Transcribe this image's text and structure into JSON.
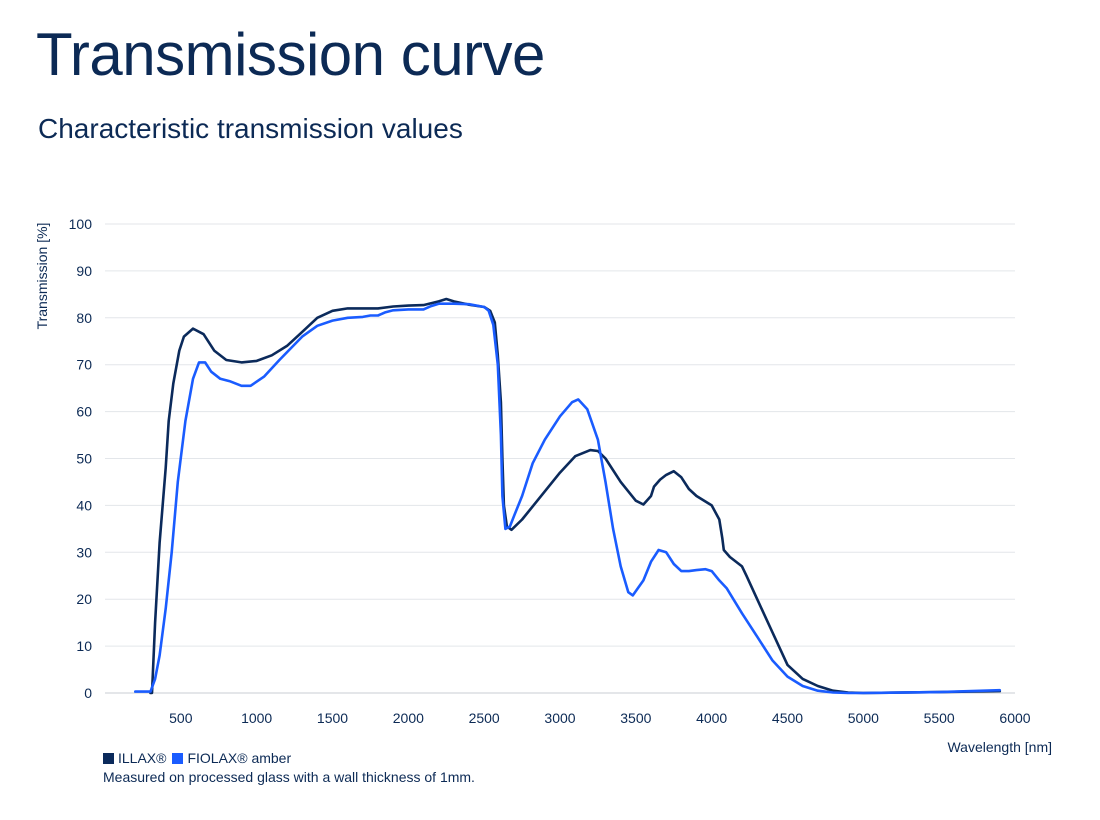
{
  "page": {
    "title": "Transmission curve",
    "subtitle": "Characteristic transmission values",
    "note": "Measured on processed glass with a wall thickness of 1mm."
  },
  "colors": {
    "text": "#0c2a55",
    "grid": "#e3e6ea",
    "axis": "#c9cdd3"
  },
  "chart_data": {
    "type": "line",
    "xlabel": "Wavelength [nm]",
    "ylabel": "Transmission [%]",
    "xlim": [
      0,
      6000
    ],
    "ylim": [
      0,
      100
    ],
    "x_ticks": [
      500,
      1000,
      1500,
      2000,
      2500,
      3000,
      3500,
      4000,
      4500,
      5000,
      5500,
      6000
    ],
    "y_ticks": [
      0,
      10,
      20,
      30,
      40,
      50,
      60,
      70,
      80,
      90,
      100
    ],
    "grid": true,
    "legend_position": "bottom-left",
    "series": [
      {
        "name": "ILLAX®",
        "color": "#0b2a5b",
        "points": [
          [
            300,
            0
          ],
          [
            310,
            0
          ],
          [
            330,
            15
          ],
          [
            360,
            32
          ],
          [
            400,
            48
          ],
          [
            420,
            58
          ],
          [
            450,
            66
          ],
          [
            490,
            73
          ],
          [
            520,
            76
          ],
          [
            580,
            77.7
          ],
          [
            650,
            76.5
          ],
          [
            720,
            73
          ],
          [
            800,
            71
          ],
          [
            900,
            70.5
          ],
          [
            1000,
            70.8
          ],
          [
            1100,
            72
          ],
          [
            1200,
            74
          ],
          [
            1300,
            77
          ],
          [
            1400,
            80
          ],
          [
            1500,
            81.5
          ],
          [
            1600,
            82
          ],
          [
            1800,
            82
          ],
          [
            1900,
            82.4
          ],
          [
            2000,
            82.6
          ],
          [
            2100,
            82.7
          ],
          [
            2200,
            83.5
          ],
          [
            2250,
            84
          ],
          [
            2300,
            83.5
          ],
          [
            2400,
            82.8
          ],
          [
            2500,
            82.3
          ],
          [
            2540,
            81.5
          ],
          [
            2570,
            79
          ],
          [
            2590,
            72
          ],
          [
            2610,
            62
          ],
          [
            2620,
            50
          ],
          [
            2630,
            40
          ],
          [
            2650,
            35.5
          ],
          [
            2680,
            34.8
          ],
          [
            2750,
            37
          ],
          [
            2850,
            41
          ],
          [
            3000,
            47
          ],
          [
            3100,
            50.5
          ],
          [
            3200,
            51.8
          ],
          [
            3250,
            51.6
          ],
          [
            3300,
            50
          ],
          [
            3400,
            45
          ],
          [
            3500,
            41
          ],
          [
            3550,
            40.2
          ],
          [
            3600,
            42
          ],
          [
            3620,
            44
          ],
          [
            3660,
            45.5
          ],
          [
            3700,
            46.5
          ],
          [
            3750,
            47.3
          ],
          [
            3800,
            46
          ],
          [
            3850,
            43.5
          ],
          [
            3900,
            42
          ],
          [
            4000,
            40
          ],
          [
            4050,
            37
          ],
          [
            4070,
            33
          ],
          [
            4080,
            30.5
          ],
          [
            4120,
            29
          ],
          [
            4200,
            27
          ],
          [
            4230,
            25
          ],
          [
            4300,
            20
          ],
          [
            4400,
            13
          ],
          [
            4500,
            6
          ],
          [
            4600,
            3
          ],
          [
            4700,
            1.5
          ],
          [
            4800,
            0.5
          ],
          [
            4900,
            0.1
          ],
          [
            5000,
            0
          ],
          [
            5500,
            0.2
          ],
          [
            5900,
            0.4
          ]
        ]
      },
      {
        "name": "FIOLAX® amber",
        "color": "#1a5cff",
        "points": [
          [
            200,
            0.3
          ],
          [
            300,
            0.3
          ],
          [
            330,
            3
          ],
          [
            360,
            8
          ],
          [
            400,
            18
          ],
          [
            440,
            30
          ],
          [
            480,
            45
          ],
          [
            530,
            58
          ],
          [
            580,
            67
          ],
          [
            620,
            70.5
          ],
          [
            660,
            70.5
          ],
          [
            700,
            68.5
          ],
          [
            760,
            67
          ],
          [
            820,
            66.5
          ],
          [
            900,
            65.5
          ],
          [
            960,
            65.5
          ],
          [
            1050,
            67.5
          ],
          [
            1150,
            71
          ],
          [
            1300,
            76
          ],
          [
            1400,
            78.3
          ],
          [
            1500,
            79.4
          ],
          [
            1600,
            80
          ],
          [
            1700,
            80.2
          ],
          [
            1750,
            80.5
          ],
          [
            1800,
            80.5
          ],
          [
            1850,
            81.2
          ],
          [
            1900,
            81.6
          ],
          [
            2000,
            81.8
          ],
          [
            2100,
            81.8
          ],
          [
            2150,
            82.5
          ],
          [
            2200,
            83
          ],
          [
            2300,
            83
          ],
          [
            2400,
            82.9
          ],
          [
            2500,
            82.3
          ],
          [
            2530,
            81.5
          ],
          [
            2560,
            78.5
          ],
          [
            2590,
            70
          ],
          [
            2610,
            55
          ],
          [
            2620,
            42
          ],
          [
            2640,
            35
          ],
          [
            2670,
            35.5
          ],
          [
            2700,
            38
          ],
          [
            2750,
            42
          ],
          [
            2820,
            49
          ],
          [
            2900,
            54
          ],
          [
            3000,
            59
          ],
          [
            3080,
            62
          ],
          [
            3120,
            62.6
          ],
          [
            3180,
            60.5
          ],
          [
            3250,
            54
          ],
          [
            3300,
            45
          ],
          [
            3350,
            35
          ],
          [
            3400,
            27
          ],
          [
            3450,
            21.5
          ],
          [
            3480,
            20.8
          ],
          [
            3550,
            24
          ],
          [
            3600,
            28
          ],
          [
            3650,
            30.5
          ],
          [
            3700,
            30
          ],
          [
            3750,
            27.5
          ],
          [
            3800,
            26
          ],
          [
            3850,
            26
          ],
          [
            3900,
            26.2
          ],
          [
            3960,
            26.4
          ],
          [
            4000,
            26
          ],
          [
            4050,
            24
          ],
          [
            4100,
            22.3
          ],
          [
            4200,
            17
          ],
          [
            4300,
            12
          ],
          [
            4400,
            7
          ],
          [
            4500,
            3.5
          ],
          [
            4600,
            1.5
          ],
          [
            4700,
            0.5
          ],
          [
            4800,
            0.1
          ],
          [
            4900,
            0
          ],
          [
            5000,
            0
          ],
          [
            5500,
            0.2
          ],
          [
            5900,
            0.6
          ]
        ]
      }
    ]
  }
}
